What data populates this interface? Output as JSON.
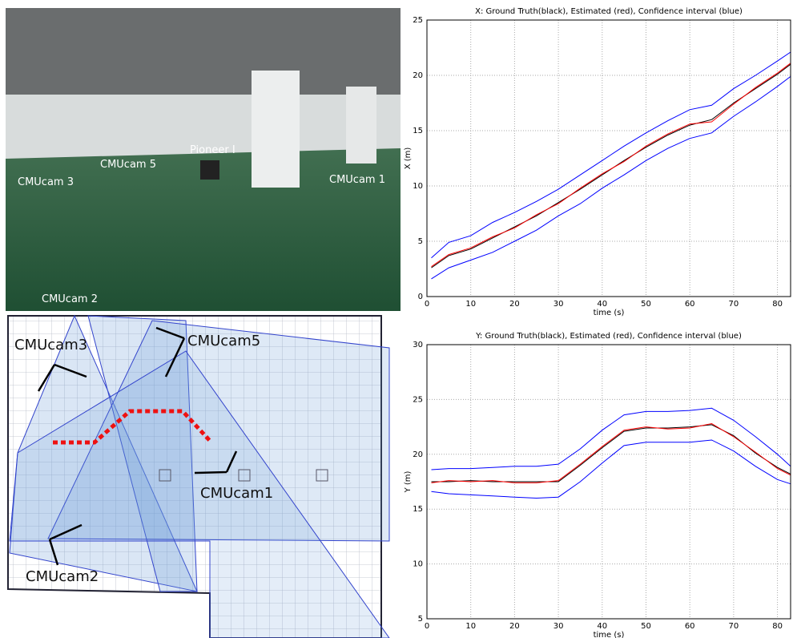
{
  "photo": {
    "labels": [
      "CMUcam 3",
      "CMUcam 5",
      "Pioneer I",
      "CMUcam 1",
      "CMUcam 2"
    ]
  },
  "floor_plan": {
    "labels": [
      "CMUcam3",
      "CMUcam5",
      "CMUcam1",
      "CMUcam2"
    ]
  },
  "chart_data": [
    {
      "type": "line",
      "title": "X: Ground Truth(black), Estimated (red), Confidence interval (blue)",
      "x_label": "time (s)",
      "y_label": "X (m)",
      "grid": true,
      "xlim": [
        0,
        83
      ],
      "ylim": [
        0,
        25
      ],
      "xticks": [
        0,
        10,
        20,
        30,
        40,
        50,
        60,
        70,
        80
      ],
      "yticks": [
        0,
        5,
        10,
        15,
        20,
        25
      ],
      "x": [
        1,
        5,
        10,
        15,
        20,
        25,
        30,
        35,
        40,
        45,
        50,
        55,
        60,
        65,
        70,
        75,
        80,
        83
      ],
      "series": [
        {
          "color": "#0000ff",
          "values": [
            3.5,
            4.9,
            5.5,
            6.7,
            7.6,
            8.6,
            9.7,
            11.0,
            12.3,
            13.6,
            14.8,
            15.9,
            16.9,
            17.3,
            18.8,
            20.0,
            21.3,
            22.1
          ]
        },
        {
          "color": "#0000ff",
          "values": [
            1.6,
            2.6,
            3.3,
            4.0,
            5.0,
            6.0,
            7.3,
            8.4,
            9.8,
            11.0,
            12.3,
            13.4,
            14.3,
            14.8,
            16.3,
            17.6,
            19.0,
            19.9
          ]
        },
        {
          "color": "#000000",
          "values": [
            2.6,
            3.7,
            4.3,
            5.3,
            6.3,
            7.3,
            8.5,
            9.7,
            11.0,
            12.3,
            13.5,
            14.6,
            15.5,
            16.0,
            17.5,
            18.8,
            20.1,
            21.0
          ]
        },
        {
          "color": "#ff0000",
          "values": [
            2.7,
            3.8,
            4.4,
            5.4,
            6.2,
            7.4,
            8.4,
            9.8,
            11.1,
            12.2,
            13.6,
            14.7,
            15.6,
            15.8,
            17.4,
            18.9,
            20.2,
            21.1
          ]
        }
      ]
    },
    {
      "type": "line",
      "title": "Y: Ground Truth(black), Estimated (red), Confidence interval (blue)",
      "x_label": "time (s)",
      "y_label": "Y (m)",
      "grid": true,
      "xlim": [
        0,
        83
      ],
      "ylim": [
        5,
        30
      ],
      "xticks": [
        0,
        10,
        20,
        30,
        40,
        50,
        60,
        70,
        80
      ],
      "yticks": [
        5,
        10,
        15,
        20,
        25,
        30
      ],
      "x": [
        1,
        5,
        10,
        15,
        20,
        25,
        30,
        35,
        40,
        45,
        50,
        55,
        60,
        65,
        70,
        75,
        80,
        83
      ],
      "series": [
        {
          "color": "#0000ff",
          "values": [
            18.6,
            18.7,
            18.7,
            18.8,
            18.9,
            18.9,
            19.1,
            20.5,
            22.2,
            23.6,
            23.9,
            23.9,
            24.0,
            24.2,
            23.1,
            21.6,
            20.0,
            18.9
          ]
        },
        {
          "color": "#0000ff",
          "values": [
            16.6,
            16.4,
            16.3,
            16.2,
            16.1,
            16.0,
            16.1,
            17.5,
            19.2,
            20.8,
            21.1,
            21.1,
            21.1,
            21.3,
            20.3,
            18.9,
            17.7,
            17.3
          ]
        },
        {
          "color": "#000000",
          "values": [
            17.5,
            17.5,
            17.6,
            17.5,
            17.5,
            17.5,
            17.5,
            19.0,
            20.6,
            22.1,
            22.4,
            22.4,
            22.5,
            22.7,
            21.7,
            20.1,
            18.8,
            18.2
          ]
        },
        {
          "color": "#ff0000",
          "values": [
            17.4,
            17.6,
            17.5,
            17.6,
            17.4,
            17.4,
            17.6,
            19.1,
            20.7,
            22.2,
            22.5,
            22.3,
            22.4,
            22.8,
            21.6,
            20.2,
            18.7,
            18.1
          ]
        }
      ]
    }
  ]
}
